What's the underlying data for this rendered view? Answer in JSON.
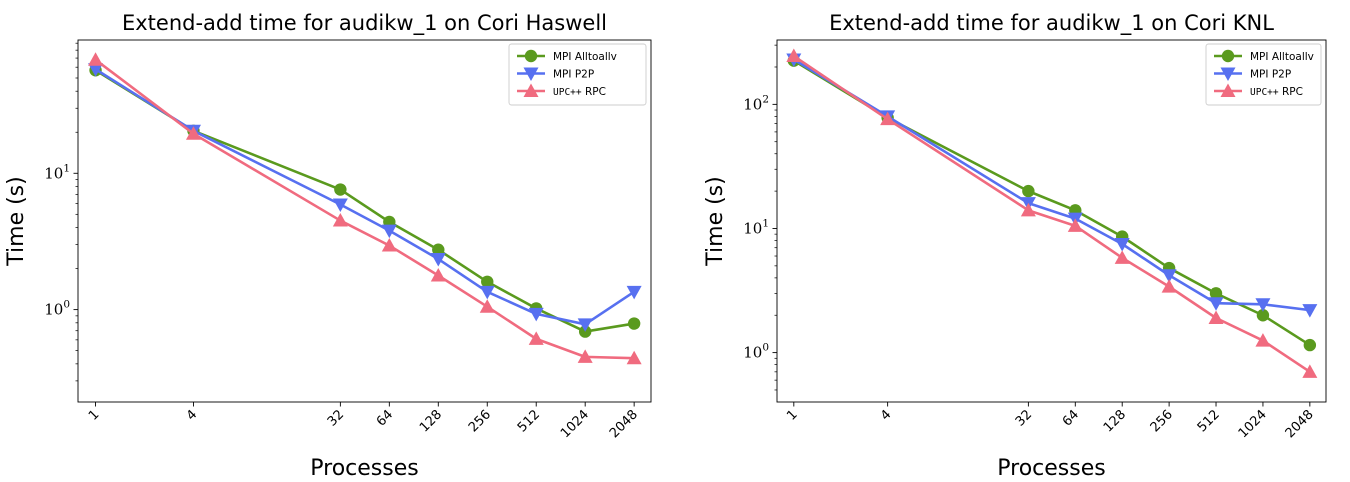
{
  "chart_data": [
    {
      "type": "line",
      "title": "Extend-add time for audikw_1 on Cori Haswell",
      "xlabel": "Processes",
      "ylabel": "Time (s)",
      "xscale": "log2",
      "yscale": "log",
      "x": [
        1,
        4,
        32,
        64,
        128,
        256,
        512,
        1024,
        2048
      ],
      "xticklabels": [
        "1",
        "4",
        "32",
        "64",
        "128",
        "256",
        "512",
        "1024",
        "2048"
      ],
      "xlim": [
        0.78,
        2600
      ],
      "ylim": [
        0.21,
        95
      ],
      "yticks": [
        {
          "value": 1,
          "base": "10",
          "exp": "0"
        },
        {
          "value": 10,
          "base": "10",
          "exp": "1"
        }
      ],
      "legend_position": "top-right",
      "grid": false,
      "series": [
        {
          "name": "MPI Alltoallv",
          "color": "#5a9a1e",
          "marker": "circle",
          "values": [
            57,
            20.5,
            7.6,
            4.4,
            2.75,
            1.6,
            1.02,
            0.69,
            0.79
          ]
        },
        {
          "name": "MPI P2P",
          "color": "#5770f0",
          "marker": "triangle-down",
          "values": [
            58,
            20.5,
            5.9,
            3.8,
            2.35,
            1.35,
            0.93,
            0.78,
            1.35
          ]
        },
        {
          "name_prefix": "UPC++",
          "name": "RPC",
          "color": "#f06b7f",
          "marker": "triangle-up",
          "values": [
            68,
            19.5,
            4.5,
            2.95,
            1.78,
            1.05,
            0.61,
            0.45,
            0.44
          ]
        }
      ]
    },
    {
      "type": "line",
      "title": "Extend-add time for audikw_1 on Cori KNL",
      "xlabel": "Processes",
      "ylabel": "Time (s)",
      "xscale": "log2",
      "yscale": "log",
      "x": [
        1,
        4,
        32,
        64,
        128,
        256,
        512,
        1024,
        2048
      ],
      "xticklabels": [
        "1",
        "4",
        "32",
        "64",
        "128",
        "256",
        "512",
        "1024",
        "2048"
      ],
      "xlim": [
        0.78,
        2600
      ],
      "ylim": [
        0.4,
        330
      ],
      "yticks": [
        {
          "value": 1,
          "base": "10",
          "exp": "0"
        },
        {
          "value": 10,
          "base": "10",
          "exp": "1"
        },
        {
          "value": 100,
          "base": "10",
          "exp": "2"
        }
      ],
      "legend_position": "top-right",
      "grid": false,
      "series": [
        {
          "name": "MPI Alltoallv",
          "color": "#5a9a1e",
          "marker": "circle",
          "values": [
            225,
            78,
            20,
            14,
            8.6,
            4.8,
            3.0,
            2.0,
            1.15
          ]
        },
        {
          "name": "MPI P2P",
          "color": "#5770f0",
          "marker": "triangle-down",
          "values": [
            230,
            80,
            16,
            12,
            7.5,
            4.2,
            2.5,
            2.45,
            2.2
          ]
        },
        {
          "name_prefix": "UPC++",
          "name": "RPC",
          "color": "#f06b7f",
          "marker": "triangle-up",
          "values": [
            245,
            76,
            14,
            10.5,
            5.8,
            3.4,
            1.9,
            1.25,
            0.7
          ]
        }
      ]
    }
  ]
}
